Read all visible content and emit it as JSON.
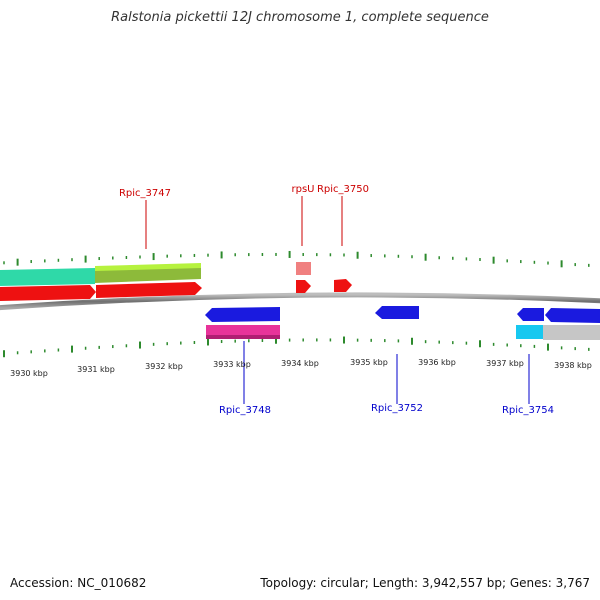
{
  "title": "Ralstonia pickettii 12J chromosome 1, complete sequence",
  "accession": "Accession: NC_010682",
  "summary": "Topology: circular; Length: 3,942,557 bp; Genes: 3,767",
  "colors": {
    "backbone": "#8a8a8a",
    "tick": "#2d8a2d",
    "label_top": "#cc0000",
    "label_bottom": "#0000cc"
  },
  "kbp_labels": [
    "3930 kbp",
    "3931 kbp",
    "3932 kbp",
    "3933 kbp",
    "3934 kbp",
    "3935 kbp",
    "3936 kbp",
    "3937 kbp",
    "3938 kbp"
  ],
  "genes": [
    {
      "name": "Rpic_3747",
      "strand": "top"
    },
    {
      "name": "rpsU",
      "strand": "top"
    },
    {
      "name": "Rpic_3750",
      "strand": "top"
    },
    {
      "name": "Rpic_3748",
      "strand": "bottom"
    },
    {
      "name": "Rpic_3752",
      "strand": "bottom"
    },
    {
      "name": "Rpic_3754",
      "strand": "bottom"
    }
  ]
}
